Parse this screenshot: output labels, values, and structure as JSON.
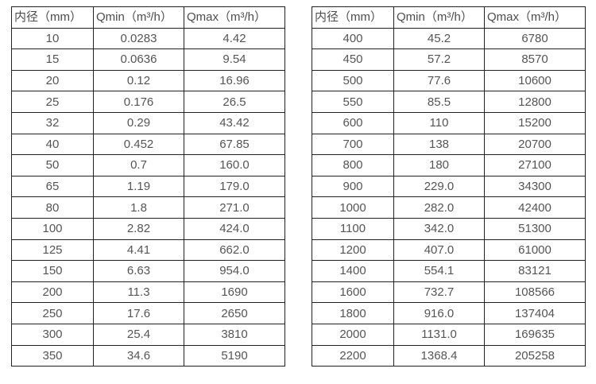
{
  "colors": {
    "background": "#ffffff",
    "border": "#222222",
    "text": "#555555"
  },
  "left_table": {
    "headers": [
      "内径（mm）",
      "Qmin（m³/h）",
      "Qmax（m³/h）"
    ],
    "rows": [
      [
        "10",
        "0.0283",
        "4.42"
      ],
      [
        "15",
        "0.0636",
        "9.54"
      ],
      [
        "20",
        "0.12",
        "16.96"
      ],
      [
        "25",
        "0.176",
        "26.5"
      ],
      [
        "32",
        "0.29",
        "43.42"
      ],
      [
        "40",
        "0.452",
        "67.85"
      ],
      [
        "50",
        "0.7",
        "160.0"
      ],
      [
        "65",
        "1.19",
        "179.0"
      ],
      [
        "80",
        "1.8",
        "271.0"
      ],
      [
        "100",
        "2.82",
        "424.0"
      ],
      [
        "125",
        "4.41",
        "662.0"
      ],
      [
        "150",
        "6.63",
        "954.0"
      ],
      [
        "200",
        "11.3",
        "1690"
      ],
      [
        "250",
        "17.6",
        "2650"
      ],
      [
        "300",
        "25.4",
        "3810"
      ],
      [
        "350",
        "34.6",
        "5190"
      ]
    ]
  },
  "right_table": {
    "headers": [
      "内径（mm）",
      "Qmin（m³/h）",
      "Qmax（m³/h）"
    ],
    "rows": [
      [
        "400",
        "45.2",
        "6780"
      ],
      [
        "450",
        "57.2",
        "8570"
      ],
      [
        "500",
        "77.6",
        "10600"
      ],
      [
        "550",
        "85.5",
        "12800"
      ],
      [
        "600",
        "110",
        "15200"
      ],
      [
        "700",
        "138",
        "20700"
      ],
      [
        "800",
        "180",
        "27100"
      ],
      [
        "900",
        "229.0",
        "34300"
      ],
      [
        "1000",
        "282.0",
        "42400"
      ],
      [
        "1100",
        "342.0",
        "51300"
      ],
      [
        "1200",
        "407.0",
        "61000"
      ],
      [
        "1400",
        "554.1",
        "83121"
      ],
      [
        "1600",
        "732.7",
        "108566"
      ],
      [
        "1800",
        "916.0",
        "137404"
      ],
      [
        "2000",
        "1131.0",
        "169635"
      ],
      [
        "2200",
        "1368.4",
        "205258"
      ]
    ]
  }
}
